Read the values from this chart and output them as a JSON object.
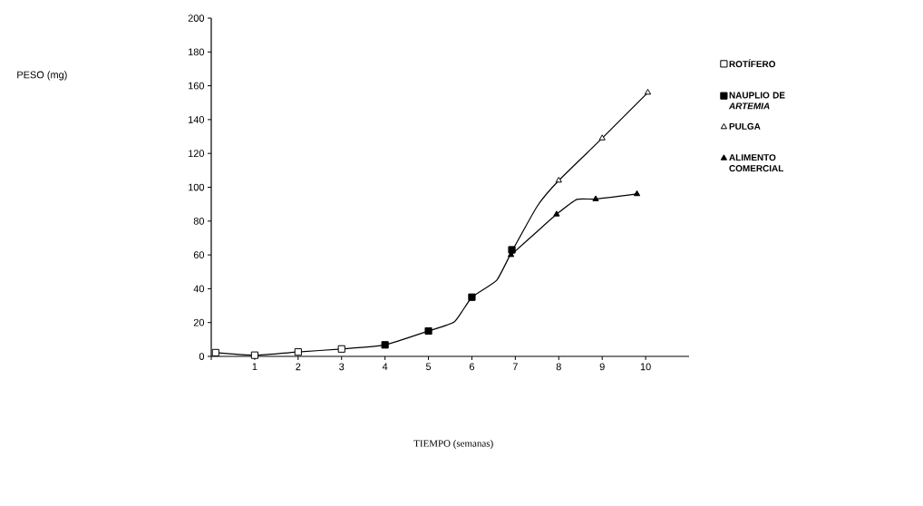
{
  "chart_data": {
    "type": "line",
    "annotations": [
      "PESO (mg)",
      "TIEMPO (semanas)"
    ],
    "xlim": [
      0,
      11
    ],
    "ylim": [
      0,
      200
    ],
    "xticks": [
      {
        "value": 0,
        "label": null
      },
      1,
      2,
      3,
      4,
      5,
      6,
      7,
      8,
      9,
      10
    ],
    "yticks": [
      0,
      20,
      40,
      60,
      80,
      100,
      120,
      140,
      160,
      180,
      200
    ],
    "grid": false,
    "legend": "right",
    "series": [
      {
        "color": "#000000",
        "marker": "none",
        "x": [
          0.1,
          1,
          2,
          3,
          4,
          5,
          5.6,
          6,
          6.57,
          6.92,
          7.51,
          8,
          9,
          10.05
        ],
        "values": [
          2.2,
          0.7,
          2.6,
          4.4,
          6.8,
          15,
          20.5,
          35,
          45,
          62,
          89,
          104,
          129,
          156
        ]
      },
      {
        "color": "#000000",
        "marker": "none",
        "x": [
          6.9,
          7.51,
          7.95,
          8.42,
          8.85,
          9.8
        ],
        "values": [
          60,
          74,
          84,
          92.8,
          93,
          96
        ]
      },
      {
        "type": "scatter",
        "name": "ROTÍFERO",
        "color": "#ffffff",
        "marker": "square",
        "x": [
          0.1,
          1,
          2,
          3
        ],
        "values": [
          2.2,
          0.7,
          2.6,
          4.4
        ]
      },
      {
        "type": "scatter",
        "name": "NAUPLIO DE *ARTEMIA*",
        "color": "#000000",
        "marker": "square",
        "x": [
          4,
          5,
          6,
          6.92
        ],
        "values": [
          6.8,
          15,
          35,
          63
        ]
      },
      {
        "type": "scatter",
        "name": "PULGA",
        "color": "#ffffff",
        "marker": "triangle",
        "x": [
          8,
          9,
          10.05
        ],
        "values": [
          104,
          129,
          156
        ]
      },
      {
        "type": "scatter",
        "name": "ALIMENTO COMERCIAL",
        "color": "#000000",
        "marker": "triangle",
        "x": [
          6.9,
          7.95,
          8.85,
          9.8
        ],
        "values": [
          60,
          84,
          93,
          96
        ]
      }
    ]
  }
}
